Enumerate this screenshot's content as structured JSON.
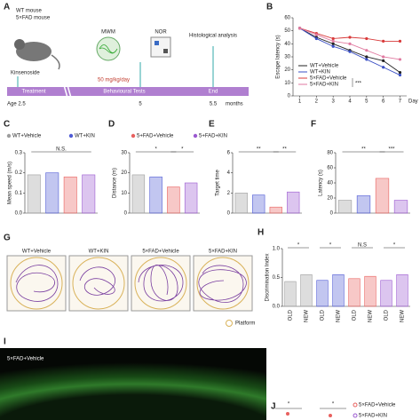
{
  "panel_labels": [
    "A",
    "B",
    "C",
    "D",
    "E",
    "F",
    "G",
    "H",
    "I",
    "J"
  ],
  "timeline": {
    "mice": [
      "WT mouse",
      "5×FAD mouse"
    ],
    "drug": "Kinsenoside",
    "tests": [
      "MWM",
      "NOR"
    ],
    "histology": "Histological analysis",
    "dose": "50 mg/kg/day",
    "phases": [
      "Treatment",
      "Behavioural Tests",
      "End"
    ],
    "ages": [
      "Age 2.5",
      "5",
      "5.5",
      "months"
    ]
  },
  "chart_data": [
    {
      "type": "line",
      "ylabel": "Escape latency (s)",
      "xlabel": "Day",
      "xlim": [
        0.6,
        7.4
      ],
      "xticks": [
        1,
        2,
        3,
        4,
        5,
        6,
        7
      ],
      "ylim": [
        0,
        60
      ],
      "yticks": [
        0,
        10,
        20,
        30,
        40,
        50,
        60
      ],
      "annotations": [
        "***"
      ],
      "series": [
        {
          "name": "WT+Vehicle",
          "color": "#222222",
          "values": [
            52,
            45,
            40,
            35,
            30,
            27,
            18
          ]
        },
        {
          "name": "WT+KIN",
          "color": "#3a4fc4",
          "values": [
            52,
            44,
            38,
            34,
            28,
            22,
            16
          ]
        },
        {
          "name": "5×FAD+Vehicle",
          "color": "#d83a3a",
          "values": [
            52,
            48,
            44,
            45,
            44,
            42,
            42
          ]
        },
        {
          "name": "5×FAD+KIN",
          "color": "#e07aa0",
          "values": [
            52,
            47,
            42,
            40,
            35,
            30,
            28
          ]
        }
      ]
    },
    {
      "type": "bar",
      "ylabel": "Mean speed (m/s)",
      "ylim": [
        0,
        0.3
      ],
      "yticks": [
        {
          "value": 0,
          "label": "0.0"
        },
        0.1,
        0.2,
        0.3
      ],
      "annotations": [
        "N.S."
      ],
      "series": [
        {
          "name": "WT+Vehicle",
          "color": "#9e9e9e",
          "values": [
            0.19
          ]
        },
        {
          "name": "WT+KIN",
          "color": "#4f5bd5",
          "values": [
            0.2
          ]
        },
        {
          "name": "5+FAD+Vehicle",
          "color": "#e8615f",
          "values": [
            0.18
          ]
        },
        {
          "name": "5+FAD+KIN",
          "color": "#9b59d0",
          "values": [
            0.19
          ]
        }
      ]
    },
    {
      "type": "bar",
      "ylabel": "Distance (m)",
      "ylim": [
        0,
        30
      ],
      "yticks": [
        0,
        10,
        20,
        30
      ],
      "annotations": [
        "*",
        "*"
      ],
      "values": [
        19,
        18,
        13,
        15
      ],
      "colors": [
        "#9e9e9e",
        "#4f5bd5",
        "#e8615f",
        "#9b59d0"
      ]
    },
    {
      "type": "bar",
      "ylabel": "Target time",
      "ylim": [
        0,
        6
      ],
      "yticks": [
        0,
        2,
        4,
        6
      ],
      "annotations": [
        "**",
        "**"
      ],
      "values": [
        2,
        1.8,
        0.6,
        2.1
      ],
      "colors": [
        "#9e9e9e",
        "#4f5bd5",
        "#e8615f",
        "#9b59d0"
      ]
    },
    {
      "type": "bar",
      "ylabel": "Latency (s)",
      "ylim": [
        0,
        80
      ],
      "yticks": [
        0,
        20,
        40,
        60,
        80
      ],
      "annotations": [
        "**",
        "***"
      ],
      "values": [
        17,
        23,
        46,
        17
      ],
      "colors": [
        "#9e9e9e",
        "#4f5bd5",
        "#e8615f",
        "#9b59d0"
      ]
    },
    {
      "type": "bar",
      "ylabel": "Discrimination Index",
      "ylim": [
        0,
        1
      ],
      "yticks": [
        {
          "value": 0,
          "label": "0.0"
        },
        0.5,
        {
          "value": 1,
          "label": "1.0"
        }
      ],
      "annotations": [
        "*",
        "*",
        "N.S",
        "*"
      ],
      "categories": [
        "OLD",
        "NEW",
        "OLD",
        "NEW",
        "OLD",
        "NEW",
        "OLD",
        "NEW"
      ],
      "values": [
        0.43,
        0.55,
        0.45,
        0.55,
        0.48,
        0.52,
        0.45,
        0.55
      ],
      "colors": [
        "#9e9e9e",
        "#9e9e9e",
        "#4f5bd5",
        "#4f5bd5",
        "#e8615f",
        "#e8615f",
        "#9b59d0",
        "#9b59d0"
      ]
    }
  ],
  "swim_paths": {
    "groups": [
      "WT+Vehicle",
      "WT+KIN",
      "5×FAD+Vehicle",
      "5×FAD+KIN"
    ],
    "legend": "Platform"
  },
  "image": {
    "label": "5×FAD+Vehicle"
  },
  "panel_j": {
    "legend": [
      "5×FAD+Vehicle",
      "5×FAD+KIN"
    ],
    "annotations": [
      "*",
      "*"
    ]
  }
}
